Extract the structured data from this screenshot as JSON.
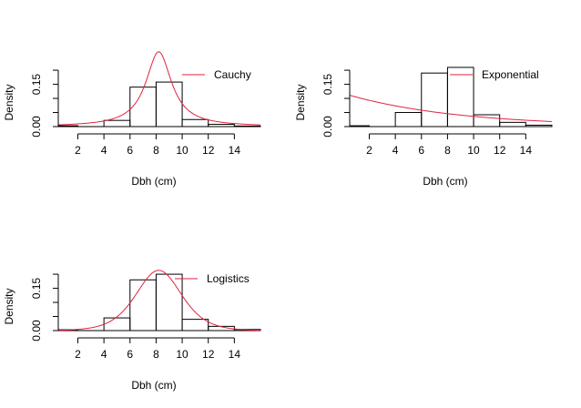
{
  "chart_data": [
    {
      "type": "bar",
      "id": "cauchy",
      "xlabel": "Dbh (cm)",
      "ylabel": "Density",
      "xlim": [
        0.5,
        16
      ],
      "ylim": [
        0,
        0.21
      ],
      "x_ticks": [
        2,
        4,
        6,
        8,
        10,
        12,
        14
      ],
      "y_ticks": [
        0.0,
        0.05,
        0.1,
        0.15,
        0.2
      ],
      "y_tick_labels": [
        {
          "value": 0.0,
          "label": "0.00"
        },
        {
          "value": 0.15,
          "label": "0.15"
        }
      ],
      "bin_edges": [
        0,
        2,
        4,
        6,
        8,
        10,
        12,
        14,
        16
      ],
      "values": [
        0.003,
        0.0,
        0.022,
        0.14,
        0.158,
        0.025,
        0.008,
        0.002
      ],
      "curve": {
        "name": "Cauchy",
        "family": "cauchy",
        "location": 8.2,
        "scale": 1.2,
        "color": "#e0233c"
      },
      "legend": {
        "position": "top-right",
        "entries": [
          "Cauchy"
        ]
      }
    },
    {
      "type": "bar",
      "id": "exponential",
      "xlabel": "Dbh (cm)",
      "ylabel": "Density",
      "xlim": [
        0.5,
        16
      ],
      "ylim": [
        0,
        0.21
      ],
      "x_ticks": [
        2,
        4,
        6,
        8,
        10,
        12,
        14
      ],
      "y_ticks": [
        0.0,
        0.05,
        0.1,
        0.15,
        0.2
      ],
      "y_tick_labels": [
        {
          "value": 0.0,
          "label": "0.00"
        },
        {
          "value": 0.15,
          "label": "0.15"
        }
      ],
      "bin_edges": [
        0,
        2,
        4,
        6,
        8,
        10,
        12,
        14,
        16
      ],
      "values": [
        0.003,
        0.0,
        0.05,
        0.19,
        0.21,
        0.042,
        0.015,
        0.005
      ],
      "curve": {
        "name": "Exponential",
        "family": "exponential",
        "rate": 0.118,
        "color": "#e0233c"
      },
      "legend": {
        "position": "top-right",
        "entries": [
          "Exponential"
        ]
      }
    },
    {
      "type": "bar",
      "id": "logistics",
      "xlabel": "Dbh (cm)",
      "ylabel": "Density",
      "xlim": [
        0.5,
        16
      ],
      "ylim": [
        0,
        0.21
      ],
      "x_ticks": [
        2,
        4,
        6,
        8,
        10,
        12,
        14
      ],
      "y_ticks": [
        0.0,
        0.05,
        0.1,
        0.15,
        0.2
      ],
      "y_tick_labels": [
        {
          "value": 0.0,
          "label": "0.00"
        },
        {
          "value": 0.15,
          "label": "0.15"
        }
      ],
      "bin_edges": [
        0,
        2,
        4,
        6,
        8,
        10,
        12,
        14,
        16
      ],
      "values": [
        0.003,
        0.0,
        0.045,
        0.18,
        0.2,
        0.04,
        0.015,
        0.004
      ],
      "curve": {
        "name": "Logistics",
        "family": "logistic",
        "location": 8.2,
        "scale": 1.17,
        "color": "#e0233c"
      },
      "legend": {
        "position": "top-right",
        "entries": [
          "Logistics"
        ]
      }
    }
  ]
}
